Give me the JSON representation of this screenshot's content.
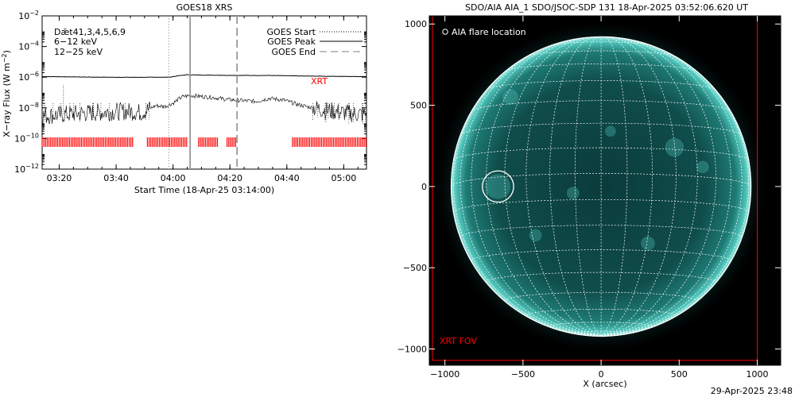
{
  "colors": {
    "xrt": "#ff0000",
    "low_band": "#000000",
    "mid_band": "#cc00cc",
    "high_band": "#00cc00",
    "sun_base": "#0a3a3a",
    "sun_bright": "#3fb0a8",
    "grid": "#ffffff",
    "marker": "#ffffff"
  },
  "chart_data": [
    {
      "type": "line",
      "title": "GOES18 XRS",
      "xlabel": "Start Time (18-Apr-25 03:14:00)",
      "ylabel": "X-ray Flux (W m⁻²)",
      "ylabel_parts": {
        "main": "X−ray Flux (W m",
        "sup": "−2",
        "end": ")"
      },
      "ylim": [
        1e-12,
        0.01
      ],
      "y_scale": "log",
      "xlim": [
        "03:14:00",
        "05:08:00"
      ],
      "x_ticks": [
        "03:20",
        "03:40",
        "04:00",
        "04:20",
        "04:40",
        "05:00"
      ],
      "x_tick_minutes": [
        20,
        40,
        60,
        80,
        100,
        120
      ],
      "y_ticks": [
        {
          "base": "10",
          "exp": "−12",
          "value": 1e-12
        },
        {
          "base": "10",
          "exp": "−10",
          "value": 1e-10
        },
        {
          "base": "10",
          "exp": "−8",
          "value": 1e-08
        },
        {
          "base": "10",
          "exp": "−6",
          "value": 1e-06
        },
        {
          "base": "10",
          "exp": "−4",
          "value": 0.0001
        },
        {
          "base": "10",
          "exp": "−2",
          "value": 0.01
        }
      ],
      "band_labels": [
        {
          "text": "Dǣt41,3,4,5,6,9",
          "color": "#000000"
        },
        {
          "text": "6−12 keV",
          "color": "#cc00cc"
        },
        {
          "text": "12−25 keV",
          "color": "#00cc00"
        }
      ],
      "legend": [
        {
          "label": "GOES Start",
          "style": "dotted"
        },
        {
          "label": "GOES Peak",
          "style": "solid"
        },
        {
          "label": "GOES End",
          "style": "dashed"
        }
      ],
      "legend_position": "top-right",
      "xrt_label": "XRT",
      "event_markers": {
        "start_min": 44.5,
        "peak_min": 52,
        "end_min": 68.5
      },
      "series": [
        {
          "name": "long channel",
          "x_min": [
            0,
            10,
            20,
            30,
            40,
            45,
            48,
            51,
            53,
            60,
            70,
            80,
            90,
            100,
            110,
            114
          ],
          "y": [
            1.1e-06,
            1.05e-06,
            1e-06,
            9.8e-07,
            9.9e-07,
            1e-06,
            1.25e-06,
            1.45e-06,
            1.4e-06,
            1.35e-06,
            1.3e-06,
            1.3e-06,
            1.2e-06,
            1.15e-06,
            1.1e-06,
            1.1e-06
          ]
        },
        {
          "name": "short channel",
          "x_min": [
            0,
            10,
            20,
            30,
            35,
            40,
            43,
            46,
            49,
            52,
            56,
            60,
            65,
            70,
            75,
            80,
            85,
            90,
            95,
            100,
            105,
            110,
            114
          ],
          "y": [
            3e-09,
            4e-09,
            5e-09,
            6e-09,
            5e-09,
            1.4e-08,
            1.2e-08,
            2e-08,
            5e-08,
            6.5e-08,
            5.5e-08,
            4.8e-08,
            3.5e-08,
            3e-08,
            2.6e-08,
            4.2e-08,
            3.2e-08,
            1.6e-08,
            1e-08,
            7e-09,
            5e-09,
            4e-09,
            4e-09
          ]
        }
      ],
      "xrt_coverage_min": [
        [
          0,
          32
        ],
        [
          37,
          51
        ],
        [
          55,
          62
        ],
        [
          65,
          68
        ],
        [
          88,
          114
        ]
      ]
    },
    {
      "type": "image",
      "title": "SDO/AIA AIA_1 SDO/JSOC-SDP 131 18-Apr-2025 03:52:06.620 UT",
      "xlabel": "X (arcsec)",
      "x_ticks": [
        -1000,
        -500,
        0,
        500,
        1000
      ],
      "y_ticks": [
        -1000,
        -500,
        0,
        500,
        1000
      ],
      "x_tick_labels": [
        "−1000",
        "−500",
        "0",
        "500",
        "1000"
      ],
      "y_tick_labels": [
        "−1000",
        "−500",
        "0",
        "500",
        "1000"
      ],
      "xlim": [
        -1100,
        1150
      ],
      "ylim": [
        -1100,
        1050
      ],
      "solar_radius_arcsec": 960,
      "flare_location_label": "AIA flare location",
      "flare_location": {
        "x": -660,
        "y": 0
      },
      "xrt_fov_label": "XRT FOV",
      "xrt_fov": {
        "x": [
          -1080,
          1000
        ],
        "y": [
          -1070,
          1050
        ]
      }
    }
  ],
  "footer_timestamp": "29-Apr-2025 23:48"
}
